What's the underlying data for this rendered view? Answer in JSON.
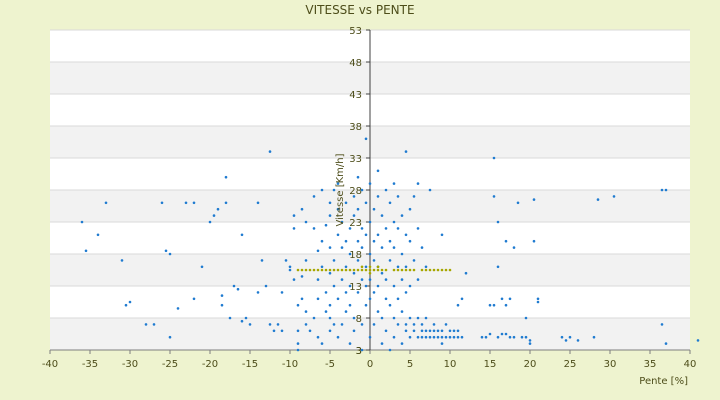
{
  "chart_data": {
    "type": "scatter",
    "title": "VITESSE vs PENTE",
    "xlabel": "Pente [%]",
    "ylabel": "Vitesse [Km/h]",
    "xlim": [
      -40,
      40
    ],
    "ylim": [
      3,
      53
    ],
    "x_ticks": [
      "-40",
      "-35",
      "-30",
      "-25",
      "-20",
      "-15",
      "-10",
      "-5",
      "0",
      "5",
      "10",
      "15",
      "20",
      "25",
      "30",
      "35",
      "40"
    ],
    "y_ticks": [
      "53",
      "48",
      "43",
      "38",
      "33",
      "28",
      "23",
      "18",
      "13",
      "8",
      "3",
      "3"
    ],
    "y_tick_values": [
      53,
      48,
      43,
      38,
      33,
      28,
      23,
      18,
      13,
      8,
      3,
      3
    ],
    "grid": true,
    "legend": "none",
    "colors": {
      "background": "#eef3cf",
      "plot_band": "#f2f2f2",
      "series_a": "#1f7bd0",
      "series_b": "#a6a600",
      "text": "#4d4d1a"
    },
    "series": [
      {
        "color": "#1f7bd0",
        "points": [
          [
            -36,
            23
          ],
          [
            -35.5,
            18.5
          ],
          [
            -34,
            21
          ],
          [
            -33,
            26
          ],
          [
            -31,
            17
          ],
          [
            -30.5,
            10
          ],
          [
            -30,
            10.5
          ],
          [
            -28,
            7
          ],
          [
            -27,
            7
          ],
          [
            -26,
            26
          ],
          [
            -25.5,
            18.5
          ],
          [
            -25,
            18
          ],
          [
            -25,
            5
          ],
          [
            -24,
            9.5
          ],
          [
            -23,
            26
          ],
          [
            -22,
            11
          ],
          [
            -22,
            26
          ],
          [
            -21,
            16
          ],
          [
            -20,
            23
          ],
          [
            -19.5,
            24
          ],
          [
            -19,
            25
          ],
          [
            -18.5,
            10
          ],
          [
            -18.5,
            11.5
          ],
          [
            -18,
            26
          ],
          [
            -18,
            30
          ],
          [
            -17.5,
            8
          ],
          [
            -17,
            13
          ],
          [
            -16.5,
            12.5
          ],
          [
            -16,
            7.5
          ],
          [
            -16,
            21
          ],
          [
            -15.5,
            8
          ],
          [
            -15,
            7
          ],
          [
            -14,
            12
          ],
          [
            -14,
            26
          ],
          [
            -13.5,
            17
          ],
          [
            -13,
            13
          ],
          [
            -12.5,
            7
          ],
          [
            -12.5,
            34
          ],
          [
            -12,
            6
          ],
          [
            -11.5,
            7
          ],
          [
            -11,
            6
          ],
          [
            -11,
            12
          ],
          [
            -10.5,
            17
          ],
          [
            -10,
            16
          ],
          [
            -10,
            15.5
          ],
          [
            -9.5,
            14
          ],
          [
            -9.5,
            22
          ],
          [
            -9.5,
            24
          ],
          [
            -9,
            10
          ],
          [
            -9,
            6
          ],
          [
            -9,
            3
          ],
          [
            -9,
            4
          ],
          [
            -8.5,
            11
          ],
          [
            -8.5,
            25
          ],
          [
            -8.5,
            14.5
          ],
          [
            -8,
            7
          ],
          [
            -8,
            9
          ],
          [
            -8,
            17
          ],
          [
            -8,
            23
          ],
          [
            -7.5,
            6
          ],
          [
            -7,
            8
          ],
          [
            -7,
            22
          ],
          [
            -7,
            27
          ],
          [
            -6.5,
            5
          ],
          [
            -6.5,
            11
          ],
          [
            -6.5,
            14
          ],
          [
            -6.5,
            18.5
          ],
          [
            -6,
            28
          ],
          [
            -6,
            4
          ],
          [
            -6,
            16
          ],
          [
            -6,
            20
          ],
          [
            -5.5,
            9
          ],
          [
            -5.5,
            12
          ],
          [
            -5.5,
            22.5
          ],
          [
            -5,
            6
          ],
          [
            -5,
            8
          ],
          [
            -5,
            10
          ],
          [
            -5,
            15
          ],
          [
            -5,
            19
          ],
          [
            -5,
            24
          ],
          [
            -5,
            26
          ],
          [
            -4.5,
            7
          ],
          [
            -4.5,
            13
          ],
          [
            -4.5,
            17
          ],
          [
            -4.5,
            28
          ],
          [
            -4,
            5
          ],
          [
            -4,
            11
          ],
          [
            -4,
            21
          ],
          [
            -4,
            25
          ],
          [
            -4,
            29
          ],
          [
            -3.5,
            7
          ],
          [
            -3.5,
            14
          ],
          [
            -3.5,
            19
          ],
          [
            -3.5,
            23
          ],
          [
            -3,
            9
          ],
          [
            -3,
            12
          ],
          [
            -3,
            16
          ],
          [
            -3,
            20
          ],
          [
            -3,
            26
          ],
          [
            -2.5,
            4
          ],
          [
            -2.5,
            10
          ],
          [
            -2.5,
            13
          ],
          [
            -2.5,
            18
          ],
          [
            -2.5,
            22
          ],
          [
            -2,
            6
          ],
          [
            -2,
            8
          ],
          [
            -2,
            15
          ],
          [
            -2,
            24
          ],
          [
            -2,
            27
          ],
          [
            -1.5,
            12
          ],
          [
            -1.5,
            17
          ],
          [
            -1.5,
            20
          ],
          [
            -1.5,
            25
          ],
          [
            -1.5,
            30
          ],
          [
            -1,
            3
          ],
          [
            -1,
            7
          ],
          [
            -1,
            14
          ],
          [
            -1,
            19
          ],
          [
            -1,
            22
          ],
          [
            -1,
            28
          ],
          [
            -0.5,
            10
          ],
          [
            -0.5,
            13
          ],
          [
            -0.5,
            16
          ],
          [
            -0.5,
            21
          ],
          [
            -0.5,
            26
          ],
          [
            -0.5,
            36
          ],
          [
            0,
            5
          ],
          [
            0,
            11
          ],
          [
            0,
            14
          ],
          [
            0,
            18
          ],
          [
            0,
            23
          ],
          [
            0,
            29
          ],
          [
            0.5,
            7
          ],
          [
            0.5,
            12
          ],
          [
            0.5,
            17
          ],
          [
            0.5,
            20
          ],
          [
            0.5,
            25
          ],
          [
            1,
            9
          ],
          [
            1,
            13
          ],
          [
            1,
            16
          ],
          [
            1,
            21
          ],
          [
            1,
            27
          ],
          [
            1,
            31
          ],
          [
            1.5,
            4
          ],
          [
            1.5,
            8
          ],
          [
            1.5,
            15
          ],
          [
            1.5,
            19
          ],
          [
            1.5,
            24
          ],
          [
            2,
            6
          ],
          [
            2,
            11
          ],
          [
            2,
            14
          ],
          [
            2,
            22
          ],
          [
            2,
            28
          ],
          [
            2.5,
            3
          ],
          [
            2.5,
            10
          ],
          [
            2.5,
            17
          ],
          [
            2.5,
            20
          ],
          [
            2.5,
            26
          ],
          [
            3,
            5
          ],
          [
            3,
            8
          ],
          [
            3,
            13
          ],
          [
            3,
            19
          ],
          [
            3,
            23
          ],
          [
            3,
            29
          ],
          [
            3.5,
            7
          ],
          [
            3.5,
            11
          ],
          [
            3.5,
            16
          ],
          [
            3.5,
            22
          ],
          [
            3.5,
            27
          ],
          [
            4,
            4
          ],
          [
            4,
            9
          ],
          [
            4,
            14
          ],
          [
            4,
            18
          ],
          [
            4,
            24
          ],
          [
            4.5,
            6
          ],
          [
            4.5,
            7
          ],
          [
            4.5,
            12
          ],
          [
            4.5,
            16
          ],
          [
            4.5,
            21
          ],
          [
            4.5,
            34
          ],
          [
            5,
            5
          ],
          [
            5,
            8
          ],
          [
            5,
            13
          ],
          [
            5,
            20
          ],
          [
            5,
            25
          ],
          [
            5.5,
            6
          ],
          [
            5.5,
            7
          ],
          [
            5.5,
            17
          ],
          [
            5.5,
            27
          ],
          [
            6,
            5
          ],
          [
            6,
            8
          ],
          [
            6,
            14
          ],
          [
            6,
            22
          ],
          [
            6,
            29
          ],
          [
            6.5,
            5
          ],
          [
            6.5,
            6
          ],
          [
            6.5,
            7
          ],
          [
            6.5,
            19
          ],
          [
            7,
            5
          ],
          [
            7,
            6
          ],
          [
            7,
            8
          ],
          [
            7,
            16
          ],
          [
            7.5,
            5
          ],
          [
            7.5,
            6
          ],
          [
            7.5,
            28
          ],
          [
            8,
            5
          ],
          [
            8,
            6
          ],
          [
            8,
            7
          ],
          [
            8.5,
            5
          ],
          [
            8.5,
            6
          ],
          [
            9,
            4
          ],
          [
            9,
            5
          ],
          [
            9,
            6
          ],
          [
            9,
            21
          ],
          [
            9.5,
            5
          ],
          [
            9.5,
            7
          ],
          [
            10,
            5
          ],
          [
            10,
            6
          ],
          [
            10.5,
            5
          ],
          [
            10.5,
            6
          ],
          [
            11,
            5
          ],
          [
            11,
            6
          ],
          [
            11,
            10
          ],
          [
            11.5,
            5
          ],
          [
            11.5,
            11
          ],
          [
            12,
            15
          ],
          [
            14,
            5
          ],
          [
            14.5,
            5
          ],
          [
            15,
            5.5
          ],
          [
            15,
            10
          ],
          [
            15.5,
            10
          ],
          [
            15.5,
            27
          ],
          [
            15.5,
            33
          ],
          [
            16,
            5
          ],
          [
            16,
            16
          ],
          [
            16,
            23
          ],
          [
            16.5,
            11
          ],
          [
            16.5,
            5.5
          ],
          [
            17,
            5.5
          ],
          [
            17,
            10
          ],
          [
            17,
            20
          ],
          [
            17.5,
            5
          ],
          [
            17.5,
            11
          ],
          [
            18,
            5
          ],
          [
            18,
            19
          ],
          [
            18.5,
            26
          ],
          [
            19,
            5
          ],
          [
            19.5,
            5
          ],
          [
            19.5,
            8
          ],
          [
            20,
            4.5
          ],
          [
            20,
            4
          ],
          [
            20.5,
            20
          ],
          [
            20.5,
            26.5
          ],
          [
            21,
            10.5
          ],
          [
            21,
            11
          ],
          [
            24,
            5
          ],
          [
            24.5,
            4.5
          ],
          [
            25,
            5
          ],
          [
            26,
            4.5
          ],
          [
            28,
            5
          ],
          [
            28.5,
            26.5
          ],
          [
            30.5,
            27
          ],
          [
            36.5,
            28
          ],
          [
            36.5,
            7
          ],
          [
            37,
            4
          ],
          [
            37,
            28
          ],
          [
            41,
            4.5
          ]
        ]
      },
      {
        "color": "#a6a600",
        "points": [
          [
            -9,
            15.5
          ],
          [
            -8.5,
            15.5
          ],
          [
            -8,
            15.5
          ],
          [
            -7.5,
            15.5
          ],
          [
            -7,
            15.5
          ],
          [
            -6.5,
            15.5
          ],
          [
            -6,
            15.5
          ],
          [
            -5.5,
            15.5
          ],
          [
            -5,
            15.5
          ],
          [
            -4.5,
            15.5
          ],
          [
            -4,
            15.5
          ],
          [
            -3.5,
            15.5
          ],
          [
            -3,
            15.5
          ],
          [
            -2.5,
            15.5
          ],
          [
            -2,
            15.5
          ],
          [
            -1.5,
            15.5
          ],
          [
            -1,
            15.5
          ],
          [
            -0.5,
            15.5
          ],
          [
            0,
            15.5
          ],
          [
            0.5,
            15.5
          ],
          [
            1,
            15.5
          ],
          [
            1.5,
            15.5
          ],
          [
            2,
            15.5
          ],
          [
            3,
            15.5
          ],
          [
            3.5,
            15.5
          ],
          [
            4,
            15.5
          ],
          [
            4.5,
            15.5
          ],
          [
            5,
            15.5
          ],
          [
            5.5,
            15.5
          ],
          [
            6.5,
            15.5
          ],
          [
            7,
            15.5
          ],
          [
            7.5,
            15.5
          ],
          [
            8,
            15.5
          ],
          [
            8.5,
            15.5
          ],
          [
            9,
            15.5
          ],
          [
            9.5,
            15.5
          ],
          [
            10,
            15.5
          ],
          [
            -1,
            16
          ],
          [
            0,
            16
          ],
          [
            1,
            16
          ],
          [
            0,
            15
          ]
        ]
      }
    ]
  }
}
